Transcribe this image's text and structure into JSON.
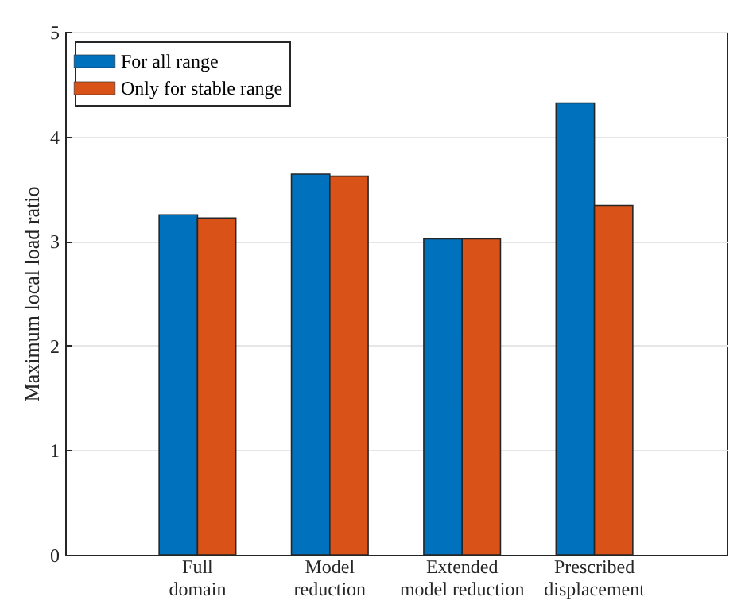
{
  "chart_data": {
    "type": "bar",
    "ylabel": "Maximum local load ratio",
    "categories": [
      "Full\ndomain",
      "Model\nreduction",
      "Extended\nmodel reduction",
      "Prescribed\ndisplacement"
    ],
    "series": [
      {
        "name": "For all range",
        "color": "#0072bd",
        "values": [
          3.25,
          3.64,
          3.02,
          4.32
        ]
      },
      {
        "name": "Only for stable range",
        "color": "#d95319",
        "values": [
          3.22,
          3.62,
          3.02,
          3.34
        ]
      }
    ],
    "ylim": [
      0,
      5
    ],
    "yticks": [
      0,
      1,
      2,
      3,
      4,
      5
    ],
    "grid": "y",
    "legend": "top left"
  }
}
